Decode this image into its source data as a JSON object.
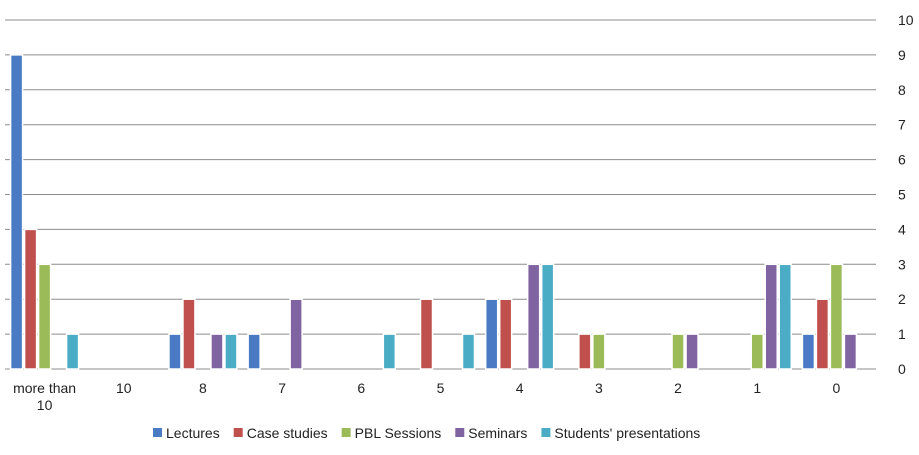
{
  "chart_data": {
    "type": "bar",
    "categories": [
      [
        "more than",
        "10"
      ],
      [
        "10"
      ],
      [
        "8"
      ],
      [
        "7"
      ],
      [
        "6"
      ],
      [
        "5"
      ],
      [
        "4"
      ],
      [
        "3"
      ],
      [
        "2"
      ],
      [
        "1"
      ],
      [
        "0"
      ]
    ],
    "ylim": [
      0,
      10
    ],
    "yticks": [
      "0",
      "1",
      "2",
      "3",
      "4",
      "5",
      "6",
      "7",
      "8",
      "9",
      "10"
    ],
    "y_axis_side": "right",
    "grid": true,
    "legend_position": "bottom",
    "series": [
      {
        "name": "Lectures",
        "color": "#4a7ac3",
        "values": [
          9,
          0,
          1,
          1,
          0,
          0,
          2,
          0,
          0,
          0,
          1
        ]
      },
      {
        "name": "Case studies",
        "color": "#c0504d",
        "values": [
          4,
          0,
          2,
          0,
          0,
          2,
          2,
          1,
          0,
          0,
          2
        ]
      },
      {
        "name": "PBL Sessions",
        "color": "#9bbb59",
        "values": [
          3,
          0,
          0,
          0,
          0,
          0,
          0,
          1,
          1,
          1,
          3
        ]
      },
      {
        "name": "Seminars",
        "color": "#8064a2",
        "values": [
          0,
          0,
          1,
          2,
          0,
          0,
          3,
          0,
          1,
          3,
          1
        ]
      },
      {
        "name": "Students' presentations",
        "color": "#4bacc6",
        "values": [
          1,
          0,
          1,
          0,
          1,
          1,
          3,
          0,
          0,
          3,
          0
        ]
      }
    ]
  }
}
